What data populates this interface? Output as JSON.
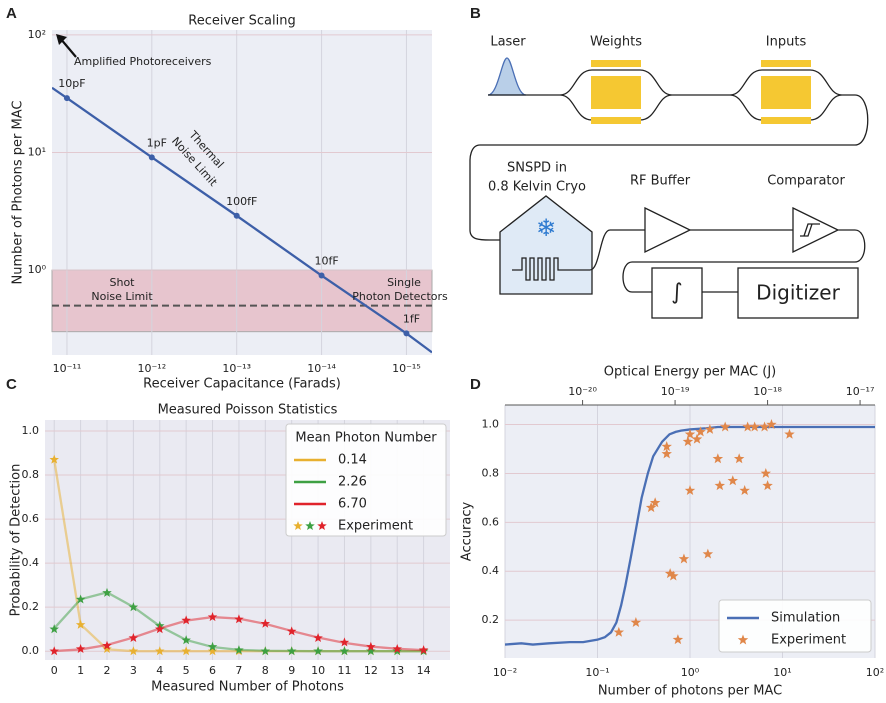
{
  "chart_data": [
    {
      "type": "line",
      "panel_label": "A",
      "title": "Receiver Scaling",
      "xlabel": "Receiver Capacitance (Farads)",
      "ylabel": "Number of Photons per MAC",
      "xscale": "log",
      "yscale": "log",
      "background": "#eceef5",
      "grid": true,
      "xlim": [
        1.5e-11,
        5e-16
      ],
      "xticks": [
        {
          "value": 1e-11,
          "label": "10⁻¹¹"
        },
        {
          "value": 1e-12,
          "label": "10⁻¹²"
        },
        {
          "value": 1e-13,
          "label": "10⁻¹³"
        },
        {
          "value": 1e-14,
          "label": "10⁻¹⁴"
        },
        {
          "value": 1e-15,
          "label": "10⁻¹⁵"
        }
      ],
      "ylim": [
        0.19,
        110
      ],
      "yticks": [
        {
          "value": 1,
          "label": "10⁰"
        },
        {
          "value": 10,
          "label": "10¹"
        },
        {
          "value": 100,
          "label": "10²"
        }
      ],
      "band": [
        0.3,
        1.0
      ],
      "band_color": "#e3a4ad",
      "hline": 0.5,
      "hline_color": "#555555",
      "series": [
        {
          "color": "#3d5fa8",
          "x": [
            1.5e-11,
            1e-11,
            1e-12,
            1e-13,
            1e-14,
            1e-15,
            5e-16
          ],
          "values": [
            35.5,
            29,
            9.1,
            2.9,
            0.9,
            0.29,
            0.2
          ],
          "point_labels": [
            null,
            "10pF",
            "1pF",
            "100fF",
            "10fF",
            "1fF",
            null
          ]
        }
      ],
      "annotations": [
        "Amplified Photoreceivers",
        "Thermal",
        "Noise Limit",
        "Shot",
        "Noise Limit",
        "Single",
        "Photon Detectors"
      ]
    },
    {
      "type": "line",
      "panel_label": "C",
      "title": "Measured Poisson Statistics",
      "xlabel": "Measured Number of Photons",
      "ylabel": "Probability of Detection",
      "background": "#eaeaf2",
      "grid": true,
      "line_alpha": 0.5,
      "x": [
        0,
        1,
        2,
        3,
        4,
        5,
        6,
        7,
        8,
        9,
        10,
        11,
        12,
        13,
        14
      ],
      "xlim": [
        -0.35,
        15
      ],
      "xticks": [
        0,
        1,
        2,
        3,
        4,
        5,
        6,
        7,
        8,
        9,
        10,
        11,
        12,
        13,
        14
      ],
      "ylim": [
        -0.04,
        1.05
      ],
      "yticks": [
        {
          "value": 0,
          "label": "0.0"
        },
        0.2,
        0.4,
        0.6,
        0.8,
        {
          "value": 1,
          "label": "1.0"
        }
      ],
      "legend": "upper right",
      "legend_title": "Mean Photon Number",
      "experiment_label": "Experiment",
      "series": [
        {
          "name": "0.14",
          "color": "#e8b030",
          "values": [
            0.869,
            0.122,
            0.009,
            0,
            0,
            0,
            0,
            0,
            0,
            0,
            0,
            0,
            0,
            0,
            0
          ],
          "experiment": [
            0.87,
            0.12,
            0.01,
            0,
            0,
            0,
            0,
            0,
            0,
            0,
            0,
            0,
            0,
            0,
            0
          ]
        },
        {
          "name": "2.26",
          "color": "#3ea043",
          "values": [
            0.104,
            0.236,
            0.267,
            0.201,
            0.114,
            0.051,
            0.019,
            0.006,
            0.002,
            0.001,
            0,
            0,
            0,
            0,
            0
          ],
          "experiment": [
            0.1,
            0.235,
            0.265,
            0.2,
            0.115,
            0.05,
            0.02,
            0.005,
            0,
            0,
            0,
            0,
            0,
            0,
            0
          ]
        },
        {
          "name": "6.70",
          "color": "#e0232b",
          "values": [
            0.001,
            0.008,
            0.028,
            0.062,
            0.103,
            0.139,
            0.155,
            0.148,
            0.124,
            0.092,
            0.062,
            0.038,
            0.021,
            0.011,
            0.005
          ],
          "experiment": [
            0,
            0.01,
            0.025,
            0.06,
            0.1,
            0.14,
            0.155,
            0.145,
            0.125,
            0.09,
            0.06,
            0.04,
            0.02,
            0.01,
            0.005
          ]
        }
      ]
    },
    {
      "type": "line",
      "panel_label": "D",
      "xlabel": "Number of photons per MAC",
      "ylabel": "Accuracy",
      "x2label": "Optical Energy per MAC (J)",
      "xscale": "log",
      "background": "#eceef5",
      "grid": true,
      "xlim": [
        0.01,
        100
      ],
      "xticks": [
        {
          "value": 0.01,
          "label": "10⁻²"
        },
        {
          "value": 0.1,
          "label": "10⁻¹"
        },
        {
          "value": 1,
          "label": "10⁰"
        },
        {
          "value": 10,
          "label": "10¹"
        },
        {
          "value": 100,
          "label": "10²"
        }
      ],
      "x2lim": [
        1.45e-21,
        1.45e-17
      ],
      "x2ticks": [
        {
          "value": 1e-20,
          "label": "10⁻²⁰"
        },
        {
          "value": 1e-19,
          "label": "10⁻¹⁹"
        },
        {
          "value": 1e-18,
          "label": "10⁻¹⁸"
        },
        {
          "value": 1e-17,
          "label": "10⁻¹⁷"
        }
      ],
      "ylim": [
        0.045,
        1.08
      ],
      "yticks": [
        0.2,
        0.4,
        0.6,
        0.8,
        {
          "value": 1,
          "label": "1.0"
        }
      ],
      "legend": "lower right",
      "series": [
        {
          "name": "Simulation",
          "color": "#4a6fb5",
          "x": [
            0.01,
            0.015,
            0.02,
            0.03,
            0.05,
            0.07,
            0.1,
            0.12,
            0.14,
            0.16,
            0.18,
            0.2,
            0.23,
            0.26,
            0.3,
            0.35,
            0.4,
            0.5,
            0.6,
            0.7,
            0.8,
            1,
            1.5,
            2,
            3,
            5,
            10,
            20,
            50,
            100
          ],
          "values": [
            0.1,
            0.105,
            0.1,
            0.105,
            0.11,
            0.11,
            0.12,
            0.13,
            0.15,
            0.19,
            0.26,
            0.34,
            0.46,
            0.57,
            0.7,
            0.8,
            0.87,
            0.93,
            0.96,
            0.97,
            0.975,
            0.98,
            0.985,
            0.99,
            0.99,
            0.99,
            0.99,
            0.99,
            0.99,
            0.99
          ]
        },
        {
          "name": "Experiment",
          "color": "#e0874a",
          "marker": "star",
          "x": [
            0.17,
            0.26,
            0.38,
            0.42,
            0.56,
            0.56,
            0.61,
            0.66,
            0.74,
            0.86,
            0.95,
            1.0,
            1.0,
            1.19,
            1.3,
            1.56,
            1.64,
            2.0,
            2.1,
            2.4,
            2.9,
            3.4,
            3.9,
            4.2,
            5.0,
            6.4,
            6.6,
            6.9,
            7.6,
            11.9
          ],
          "values": [
            0.15,
            0.19,
            0.66,
            0.68,
            0.88,
            0.91,
            0.39,
            0.38,
            0.12,
            0.45,
            0.93,
            0.73,
            0.96,
            0.94,
            0.97,
            0.47,
            0.98,
            0.86,
            0.75,
            0.99,
            0.77,
            0.86,
            0.73,
            0.99,
            0.99,
            0.99,
            0.8,
            0.75,
            1.0,
            0.96
          ]
        }
      ]
    }
  ],
  "diagram": {
    "panel_label": "B",
    "laser": "Laser",
    "weights": "Weights",
    "inputs": "Inputs",
    "detector": [
      "SNSPD in",
      "0.8 Kelvin Cryo"
    ],
    "rf_buffer": "RF Buffer",
    "comparator": "Comparator",
    "integrator": "∫",
    "digitizer": "Digitizer"
  }
}
